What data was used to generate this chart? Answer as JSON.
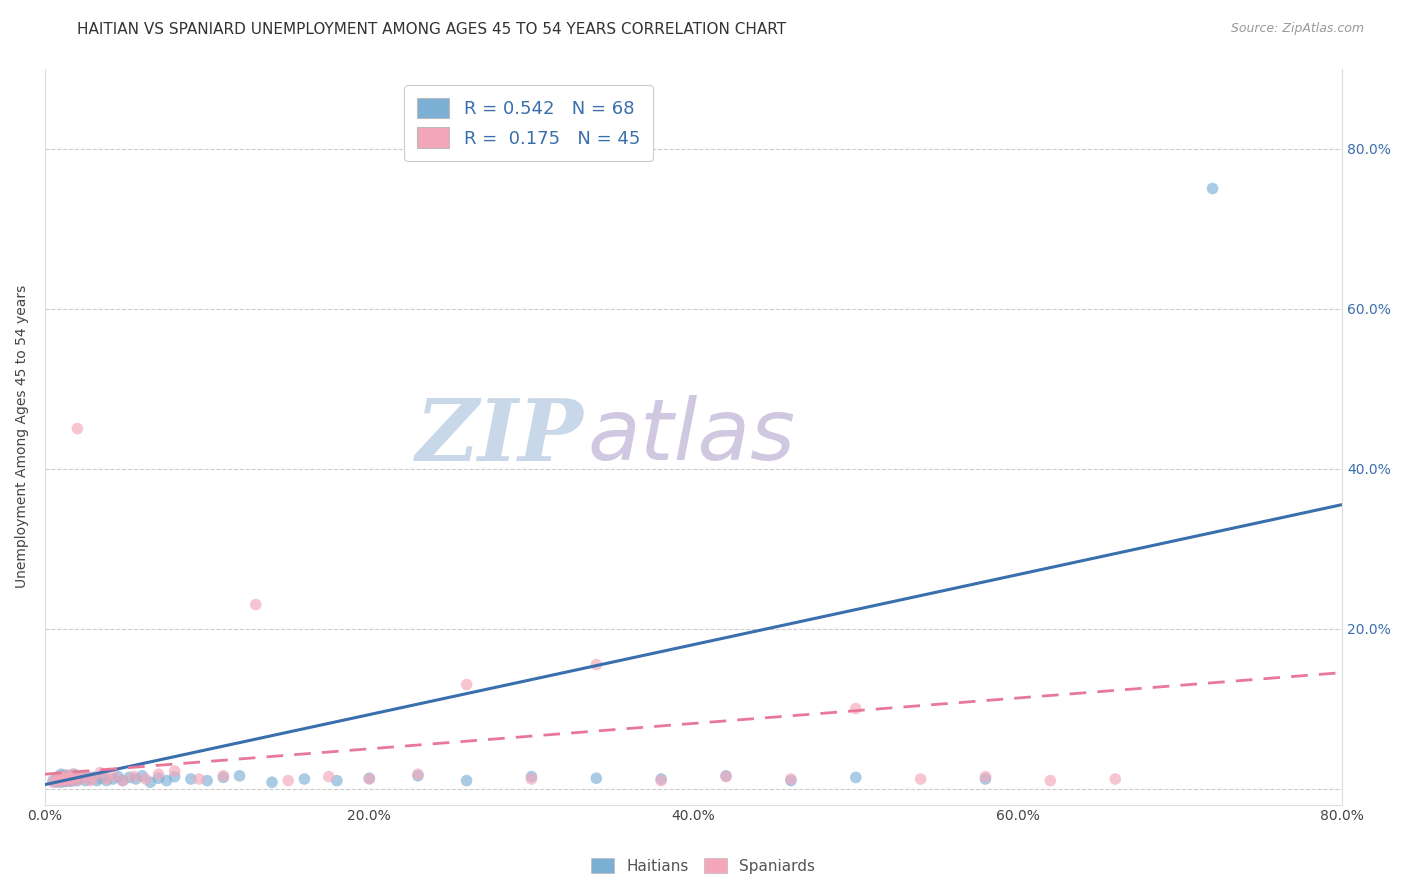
{
  "title": "HAITIAN VS SPANIARD UNEMPLOYMENT AMONG AGES 45 TO 54 YEARS CORRELATION CHART",
  "source": "Source: ZipAtlas.com",
  "ylabel": "Unemployment Among Ages 45 to 54 years",
  "xlim": [
    0.0,
    0.8
  ],
  "ylim": [
    -0.02,
    0.9
  ],
  "xticks": [
    0.0,
    0.2,
    0.4,
    0.6,
    0.8
  ],
  "yticks": [
    0.0,
    0.2,
    0.4,
    0.6,
    0.8
  ],
  "xticklabels": [
    "0.0%",
    "20.0%",
    "40.0%",
    "60.0%",
    "80.0%"
  ],
  "yticklabels_right": [
    "",
    "20.0%",
    "40.0%",
    "60.0%",
    "80.0%"
  ],
  "haitian_color": "#7bafd4",
  "spaniard_color": "#f4a7b9",
  "haitian_line_color": "#3a6fad",
  "spaniard_line_color": "#e87899",
  "background_color": "#ffffff",
  "watermark_zip": "ZIP",
  "watermark_atlas": "atlas",
  "legend_line1": "R = 0.542   N = 68",
  "legend_line2": "R =  0.175   N = 45",
  "haitian_scatter_x": [
    0.005,
    0.007,
    0.008,
    0.008,
    0.009,
    0.009,
    0.01,
    0.01,
    0.01,
    0.01,
    0.011,
    0.011,
    0.012,
    0.012,
    0.012,
    0.013,
    0.013,
    0.013,
    0.014,
    0.014,
    0.015,
    0.015,
    0.016,
    0.016,
    0.017,
    0.018,
    0.018,
    0.019,
    0.02,
    0.02,
    0.022,
    0.023,
    0.025,
    0.026,
    0.028,
    0.03,
    0.032,
    0.034,
    0.036,
    0.038,
    0.042,
    0.045,
    0.048,
    0.052,
    0.056,
    0.06,
    0.065,
    0.07,
    0.075,
    0.08,
    0.09,
    0.1,
    0.11,
    0.12,
    0.14,
    0.16,
    0.18,
    0.2,
    0.23,
    0.26,
    0.3,
    0.34,
    0.38,
    0.42,
    0.46,
    0.5,
    0.58,
    0.72
  ],
  "haitian_scatter_y": [
    0.01,
    0.008,
    0.012,
    0.015,
    0.01,
    0.013,
    0.008,
    0.012,
    0.015,
    0.018,
    0.01,
    0.014,
    0.009,
    0.012,
    0.016,
    0.01,
    0.013,
    0.017,
    0.011,
    0.015,
    0.009,
    0.013,
    0.012,
    0.016,
    0.01,
    0.014,
    0.018,
    0.012,
    0.01,
    0.014,
    0.013,
    0.016,
    0.01,
    0.015,
    0.012,
    0.014,
    0.01,
    0.013,
    0.016,
    0.01,
    0.012,
    0.015,
    0.01,
    0.014,
    0.012,
    0.016,
    0.008,
    0.013,
    0.01,
    0.015,
    0.012,
    0.01,
    0.014,
    0.016,
    0.008,
    0.012,
    0.01,
    0.013,
    0.016,
    0.01,
    0.015,
    0.013,
    0.012,
    0.016,
    0.01,
    0.014,
    0.012,
    0.75
  ],
  "spaniard_scatter_x": [
    0.005,
    0.007,
    0.008,
    0.009,
    0.01,
    0.011,
    0.012,
    0.013,
    0.014,
    0.015,
    0.016,
    0.017,
    0.018,
    0.019,
    0.02,
    0.022,
    0.025,
    0.028,
    0.03,
    0.034,
    0.038,
    0.042,
    0.048,
    0.055,
    0.062,
    0.07,
    0.08,
    0.095,
    0.11,
    0.13,
    0.15,
    0.175,
    0.2,
    0.23,
    0.26,
    0.3,
    0.34,
    0.38,
    0.42,
    0.46,
    0.5,
    0.54,
    0.58,
    0.62,
    0.66
  ],
  "spaniard_scatter_y": [
    0.008,
    0.012,
    0.01,
    0.015,
    0.009,
    0.013,
    0.011,
    0.016,
    0.01,
    0.014,
    0.012,
    0.018,
    0.01,
    0.015,
    0.45,
    0.012,
    0.016,
    0.01,
    0.014,
    0.02,
    0.012,
    0.016,
    0.01,
    0.015,
    0.012,
    0.018,
    0.022,
    0.012,
    0.016,
    0.23,
    0.01,
    0.015,
    0.012,
    0.018,
    0.13,
    0.012,
    0.155,
    0.01,
    0.015,
    0.012,
    0.1,
    0.012,
    0.015,
    0.01,
    0.012
  ],
  "haitian_trend_x": [
    0.0,
    0.8
  ],
  "haitian_trend_y": [
    0.005,
    0.355
  ],
  "spaniard_trend_x": [
    0.0,
    0.8
  ],
  "spaniard_trend_y": [
    0.018,
    0.145
  ],
  "title_fontsize": 11,
  "label_fontsize": 10,
  "tick_fontsize": 10
}
